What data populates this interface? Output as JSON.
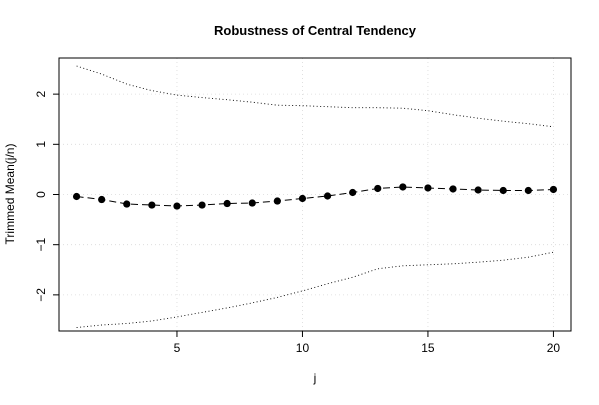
{
  "chart_data": {
    "type": "line",
    "title": "Robustness of Central Tendency",
    "xlabel": "j",
    "ylabel": "Trimmed Mean(j/n)",
    "xlim": [
      0.3,
      20.7
    ],
    "ylim": [
      -2.72,
      2.72
    ],
    "x_ticks": [
      5,
      10,
      15,
      20
    ],
    "y_ticks": [
      -2,
      -1,
      0,
      1,
      2
    ],
    "x_tick_labels": [
      "5",
      "10",
      "15",
      "20"
    ],
    "y_tick_labels": [
      "−2",
      "−1",
      "0",
      "1",
      "2"
    ],
    "grid": true,
    "x": [
      1,
      2,
      3,
      4,
      5,
      6,
      7,
      8,
      9,
      10,
      11,
      12,
      13,
      14,
      15,
      16,
      17,
      18,
      19,
      20
    ],
    "series": [
      {
        "role": "mean",
        "style": "dashed line with filled circles",
        "color": "#000000",
        "values": [
          -0.04,
          -0.1,
          -0.19,
          -0.21,
          -0.23,
          -0.21,
          -0.18,
          -0.17,
          -0.13,
          -0.08,
          -0.03,
          0.04,
          0.12,
          0.15,
          0.13,
          0.11,
          0.09,
          0.08,
          0.08,
          0.1
        ]
      },
      {
        "role": "upper bound",
        "style": "dotted line",
        "color": "#000000",
        "values": [
          2.56,
          2.4,
          2.2,
          2.07,
          1.98,
          1.93,
          1.89,
          1.84,
          1.78,
          1.77,
          1.75,
          1.73,
          1.73,
          1.72,
          1.67,
          1.59,
          1.52,
          1.46,
          1.41,
          1.35
        ]
      },
      {
        "role": "lower bound",
        "style": "dotted line",
        "color": "#000000",
        "values": [
          -2.65,
          -2.6,
          -2.57,
          -2.52,
          -2.44,
          -2.35,
          -2.26,
          -2.16,
          -2.05,
          -1.92,
          -1.78,
          -1.65,
          -1.48,
          -1.42,
          -1.4,
          -1.38,
          -1.35,
          -1.31,
          -1.25,
          -1.15
        ]
      }
    ]
  }
}
